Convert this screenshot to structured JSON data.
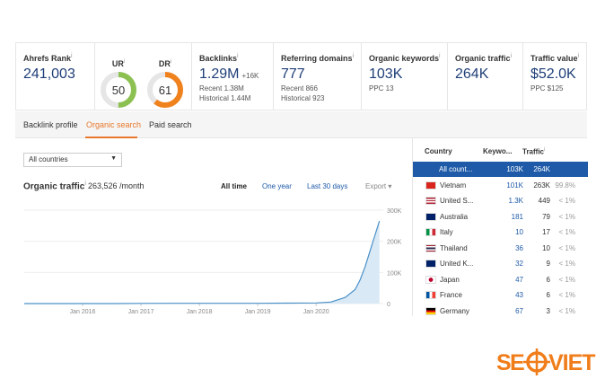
{
  "metrics": {
    "ahrefs_rank": {
      "label": "Ahrefs Rank",
      "info": "i",
      "value": "241,003"
    },
    "ur": {
      "label": "UR",
      "info": "i",
      "value": "50",
      "level": 50
    },
    "dr": {
      "label": "DR",
      "info": "i",
      "value": "61",
      "level": 61
    },
    "backlinks": {
      "label": "Backlinks",
      "info": "i",
      "value": "1.29M",
      "delta": "+16K",
      "recent": "Recent 1.38M",
      "historical": "Historical 1.44M"
    },
    "referring_domains": {
      "label": "Referring domains",
      "info": "i",
      "value": "777",
      "recent": "Recent 866",
      "historical": "Historical 923"
    },
    "organic_keywords": {
      "label": "Organic keywords",
      "info": "i",
      "value": "103K",
      "sub": "PPC 13"
    },
    "organic_traffic": {
      "label": "Organic traffic",
      "info": "i",
      "value": "264K"
    },
    "traffic_value": {
      "label": "Traffic value",
      "info": "i",
      "value": "$52.0K",
      "sub": "PPC $125"
    }
  },
  "tabs": [
    {
      "label": "Backlink profile",
      "active": false
    },
    {
      "label": "Organic search",
      "active": true
    },
    {
      "label": "Paid search",
      "active": false
    }
  ],
  "filter": {
    "selected": "All countries",
    "caret": "▼"
  },
  "organic_chart": {
    "title": "Organic traffic",
    "info": "i",
    "value": "263,526 /month",
    "ranges": [
      "All time",
      "One year",
      "Last 30 days"
    ],
    "active_range": "All time",
    "export": "Export",
    "export_caret": "▾"
  },
  "chart_data": {
    "type": "area",
    "x": [
      "2015-01",
      "2015-07",
      "2016-01",
      "2016-07",
      "2017-01",
      "2017-07",
      "2018-01",
      "2018-07",
      "2019-01",
      "2019-07",
      "2020-01",
      "2020-04",
      "2020-07",
      "2020-09",
      "2020-10",
      "2020-11",
      "2020-12",
      "2021-01",
      "2021-02"
    ],
    "values": [
      0,
      0,
      0,
      0,
      500,
      1000,
      1000,
      1000,
      1000,
      1500,
      2000,
      5000,
      20000,
      45000,
      75000,
      115000,
      165000,
      215000,
      265000
    ],
    "xticks": [
      "Jan 2016",
      "Jan 2017",
      "Jan 2018",
      "Jan 2019",
      "Jan 2020"
    ],
    "yticks": [
      "0",
      "100K",
      "200K",
      "300K"
    ],
    "ylim": [
      0,
      300000
    ],
    "color": "#4a90c8",
    "fill": "#d9e9f5"
  },
  "countries": {
    "headers": {
      "country": "Country",
      "keywords": "Keywo...",
      "traffic": "Traffic",
      "info": "i"
    },
    "rows": [
      {
        "name": "All count...",
        "keywords": "103K",
        "traffic": "264K",
        "pct": "",
        "flag": "",
        "selected": true
      },
      {
        "name": "Vietnam",
        "keywords": "101K",
        "traffic": "263K",
        "pct": "99.8%",
        "flag": "vn",
        "selected": false
      },
      {
        "name": "United S...",
        "keywords": "1.3K",
        "traffic": "449",
        "pct": "< 1%",
        "flag": "us",
        "selected": false
      },
      {
        "name": "Australia",
        "keywords": "181",
        "traffic": "79",
        "pct": "< 1%",
        "flag": "au",
        "selected": false
      },
      {
        "name": "Italy",
        "keywords": "10",
        "traffic": "17",
        "pct": "< 1%",
        "flag": "it",
        "selected": false
      },
      {
        "name": "Thailand",
        "keywords": "36",
        "traffic": "10",
        "pct": "< 1%",
        "flag": "th",
        "selected": false
      },
      {
        "name": "United K...",
        "keywords": "32",
        "traffic": "9",
        "pct": "< 1%",
        "flag": "gb",
        "selected": false
      },
      {
        "name": "Japan",
        "keywords": "47",
        "traffic": "6",
        "pct": "< 1%",
        "flag": "jp",
        "selected": false
      },
      {
        "name": "France",
        "keywords": "43",
        "traffic": "6",
        "pct": "< 1%",
        "flag": "fr",
        "selected": false
      },
      {
        "name": "Germany",
        "keywords": "67",
        "traffic": "3",
        "pct": "< 1%",
        "flag": "de",
        "selected": false
      }
    ]
  },
  "logo": {
    "text": "SEOVIET",
    "color": "#f07d1a"
  }
}
